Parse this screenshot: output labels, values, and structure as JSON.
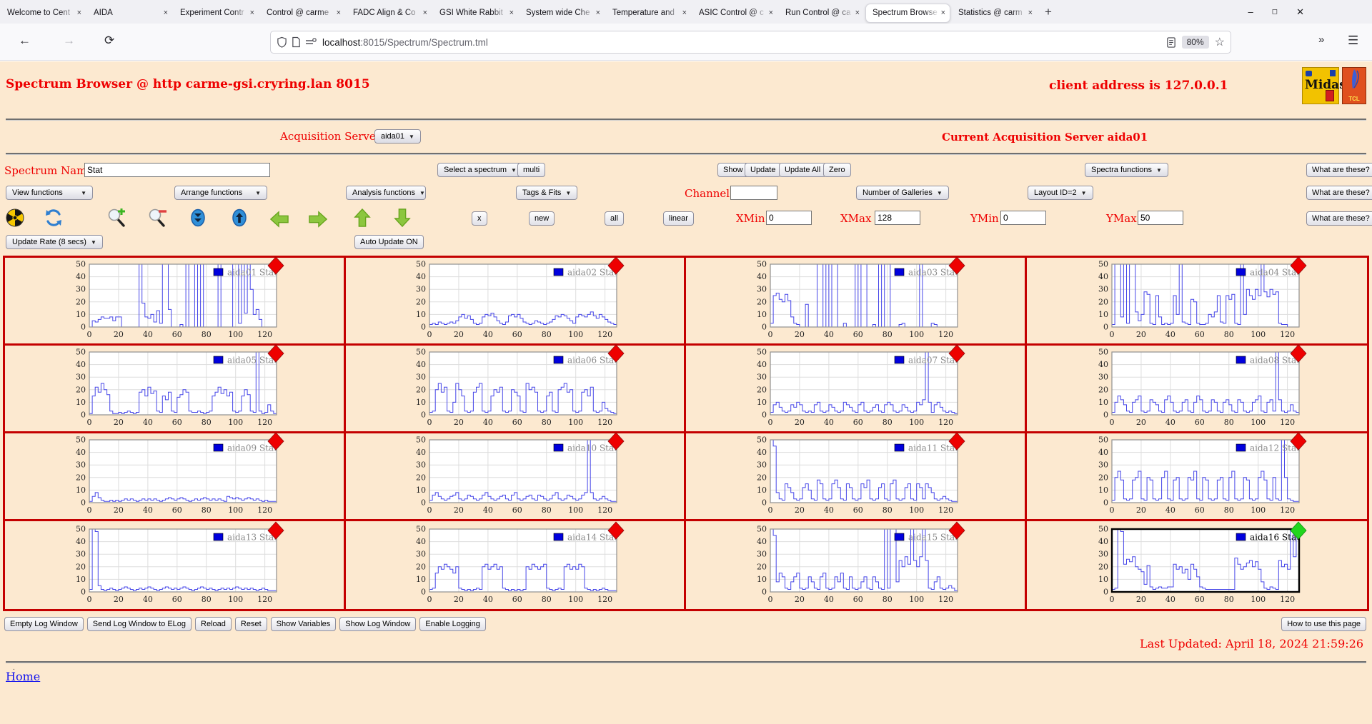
{
  "browser": {
    "tabs": [
      {
        "label": "Welcome to Cent"
      },
      {
        "label": "AIDA"
      },
      {
        "label": "Experiment Contr"
      },
      {
        "label": "Control @ carme"
      },
      {
        "label": "FADC Align & Co"
      },
      {
        "label": "GSI White Rabbit"
      },
      {
        "label": "System wide Che"
      },
      {
        "label": "Temperature and"
      },
      {
        "label": "ASIC Control @ c"
      },
      {
        "label": "Run Control @ ca"
      },
      {
        "label": "Spectrum Browse"
      },
      {
        "label": "Statistics @ carm"
      }
    ],
    "active_tab_index": 10,
    "url": {
      "host": "localhost",
      "path": ":8015/Spectrum/Spectrum.tml"
    },
    "zoom_badge": "80%"
  },
  "header": {
    "title": "Spectrum Browser @ http carme-gsi.cryring.lan 8015",
    "client_address": "client address is 127.0.0.1",
    "midas_logo_text": "Midas",
    "tcl_logo_text": "TCL"
  },
  "acquisition": {
    "label": "Acquisition Servers",
    "server_selected": "aida01",
    "current": "Current Acquisition Server aida01"
  },
  "controls": {
    "spectrum_name_label": "Spectrum Name:",
    "spectrum_name_value": "Stat",
    "select_spectrum": "Select a spectrum",
    "multi": "multi",
    "show": "Show",
    "update": "Update",
    "update_all": "Update All",
    "zero": "Zero",
    "spectra_functions": "Spectra functions",
    "what_are_these": "What are these?",
    "view_functions": "View functions",
    "arrange_functions": "Arrange functions",
    "analysis_functions": "Analysis functions",
    "tags_fits": "Tags & Fits",
    "channel_label": "Channel:",
    "channel_value": "",
    "number_of_galleries": "Number of Galleries",
    "layout_id": "Layout ID=2",
    "x_button": "x",
    "new_button": "new",
    "all_button": "all",
    "linear_button": "linear",
    "xmin_label": "XMin",
    "xmin": "0",
    "xmax_label": "XMax",
    "xmax": "128",
    "ymin_label": "YMin",
    "ymin": "0",
    "ymax_label": "YMax",
    "ymax": "50",
    "update_rate": "Update Rate (8 secs)",
    "auto_update": "Auto Update ON"
  },
  "footer": {
    "log_buttons": [
      "Empty Log Window",
      "Send Log Window to ELog",
      "Reload",
      "Reset",
      "Show Variables",
      "Show Log Window",
      "Enable Logging"
    ],
    "help_button": "How to use this page",
    "last_updated": "Last Updated: April 18, 2024 21:59:26",
    "dot": ".",
    "home_link": "Home"
  },
  "chart_data": {
    "type": "line",
    "grid": {
      "rows": 4,
      "cols": 4
    },
    "xlim": [
      0,
      128
    ],
    "ylim": [
      0,
      50
    ],
    "xticks": [
      0,
      20,
      40,
      60,
      80,
      100,
      120
    ],
    "yticks": [
      0,
      10,
      20,
      30,
      40,
      50
    ],
    "line_color": "#4646e8",
    "legend_square_color": "#0000dd",
    "marker_red": "#ee0000",
    "marker_green": "#22d51e",
    "charts": [
      {
        "name": "aida01 Stat",
        "marker": "red",
        "selected": false,
        "values": [
          0,
          5,
          4,
          6,
          8,
          7,
          7,
          8,
          5,
          8,
          8,
          0,
          0,
          0,
          0,
          0,
          0,
          50,
          19,
          8,
          7,
          10,
          4,
          13,
          3,
          50,
          50,
          14,
          0,
          0,
          0,
          2,
          0,
          50,
          0,
          0,
          50,
          0,
          50,
          0,
          0,
          0,
          0,
          0,
          50,
          0,
          0,
          0,
          0,
          50,
          50,
          3,
          50,
          11,
          50,
          30,
          10,
          14,
          6,
          0,
          0,
          0,
          0,
          0,
          0
        ]
      },
      {
        "name": "aida02 Stat",
        "marker": "red",
        "selected": false,
        "values": [
          2,
          3,
          2,
          4,
          3,
          2,
          3,
          4,
          3,
          5,
          8,
          10,
          7,
          9,
          6,
          3,
          2,
          3,
          8,
          10,
          9,
          11,
          8,
          5,
          3,
          2,
          4,
          9,
          10,
          8,
          10,
          7,
          4,
          3,
          2,
          3,
          5,
          4,
          3,
          2,
          3,
          4,
          6,
          9,
          8,
          10,
          9,
          7,
          5,
          3,
          8,
          10,
          9,
          8,
          10,
          12,
          9,
          7,
          10,
          8,
          6,
          4,
          3,
          2,
          2
        ]
      },
      {
        "name": "aida03 Stat",
        "marker": "red",
        "selected": false,
        "values": [
          3,
          25,
          27,
          22,
          20,
          26,
          21,
          8,
          3,
          2,
          0,
          0,
          18,
          0,
          0,
          0,
          50,
          50,
          0,
          50,
          0,
          50,
          50,
          0,
          0,
          3,
          0,
          0,
          0,
          50,
          0,
          50,
          50,
          0,
          0,
          2,
          0,
          50,
          0,
          50,
          50,
          0,
          0,
          0,
          2,
          3,
          0,
          0,
          0,
          0,
          0,
          50,
          0,
          0,
          0,
          3,
          2,
          0,
          0,
          0,
          0,
          0,
          0,
          0,
          0
        ]
      },
      {
        "name": "aida04 Stat",
        "marker": "red",
        "selected": false,
        "values": [
          2,
          50,
          50,
          8,
          50,
          3,
          50,
          50,
          12,
          5,
          10,
          28,
          26,
          3,
          2,
          25,
          8,
          2,
          3,
          2,
          3,
          25,
          10,
          50,
          4,
          3,
          2,
          22,
          20,
          3,
          2,
          2,
          3,
          10,
          8,
          12,
          25,
          4,
          3,
          25,
          22,
          26,
          3,
          2,
          50,
          10,
          30,
          25,
          22,
          30,
          25,
          50,
          28,
          24,
          30,
          26,
          28,
          3,
          2,
          2,
          0,
          0,
          0,
          0,
          0
        ]
      },
      {
        "name": "aida05 Stat",
        "marker": "red",
        "selected": false,
        "values": [
          1,
          15,
          22,
          18,
          25,
          20,
          16,
          3,
          1,
          1,
          2,
          1,
          2,
          3,
          2,
          1,
          2,
          18,
          20,
          15,
          22,
          17,
          19,
          3,
          2,
          15,
          12,
          18,
          3,
          2,
          14,
          16,
          20,
          18,
          3,
          2,
          2,
          3,
          2,
          1,
          2,
          3,
          15,
          18,
          22,
          17,
          20,
          15,
          18,
          3,
          2,
          3,
          15,
          20,
          16,
          3,
          2,
          50,
          3,
          1,
          2,
          8,
          3,
          1,
          0
        ]
      },
      {
        "name": "aida06 Stat",
        "marker": "red",
        "selected": false,
        "values": [
          2,
          3,
          20,
          25,
          18,
          22,
          3,
          2,
          10,
          25,
          20,
          15,
          3,
          2,
          3,
          18,
          22,
          25,
          3,
          2,
          3,
          15,
          20,
          18,
          22,
          3,
          2,
          3,
          20,
          18,
          15,
          3,
          2,
          25,
          20,
          22,
          18,
          3,
          2,
          3,
          15,
          18,
          3,
          2,
          20,
          22,
          25,
          18,
          20,
          3,
          2,
          3,
          18,
          20,
          15,
          22,
          3,
          2,
          3,
          10,
          5,
          3,
          2,
          1,
          1
        ]
      },
      {
        "name": "aida07 Stat",
        "marker": "red",
        "selected": false,
        "values": [
          2,
          8,
          10,
          6,
          3,
          2,
          3,
          8,
          6,
          10,
          8,
          3,
          2,
          3,
          2,
          8,
          10,
          3,
          2,
          3,
          8,
          6,
          3,
          2,
          3,
          10,
          8,
          6,
          3,
          2,
          8,
          10,
          3,
          2,
          3,
          6,
          8,
          3,
          2,
          8,
          10,
          8,
          3,
          2,
          3,
          8,
          6,
          3,
          2,
          3,
          10,
          8,
          12,
          50,
          10,
          2,
          8,
          10,
          6,
          3,
          2,
          3,
          2,
          1,
          1
        ]
      },
      {
        "name": "aida08 Stat",
        "marker": "red",
        "selected": false,
        "values": [
          2,
          10,
          15,
          12,
          8,
          3,
          2,
          10,
          12,
          15,
          3,
          2,
          3,
          12,
          10,
          8,
          3,
          2,
          12,
          15,
          10,
          3,
          2,
          3,
          10,
          12,
          3,
          2,
          10,
          15,
          12,
          3,
          2,
          3,
          12,
          10,
          3,
          2,
          10,
          12,
          8,
          3,
          2,
          12,
          10,
          3,
          2,
          3,
          10,
          12,
          15,
          3,
          2,
          10,
          12,
          3,
          50,
          12,
          3,
          2,
          3,
          8,
          3,
          2,
          1
        ]
      },
      {
        "name": "aida09 Stat",
        "marker": "red",
        "selected": false,
        "values": [
          1,
          5,
          8,
          4,
          2,
          1,
          1,
          2,
          1,
          2,
          1,
          2,
          3,
          2,
          3,
          2,
          1,
          2,
          3,
          2,
          3,
          2,
          3,
          2,
          1,
          2,
          3,
          4,
          3,
          2,
          3,
          4,
          3,
          2,
          1,
          2,
          3,
          2,
          3,
          4,
          3,
          2,
          3,
          2,
          3,
          2,
          1,
          5,
          4,
          3,
          4,
          3,
          2,
          3,
          4,
          3,
          2,
          3,
          2,
          1,
          2,
          1,
          1,
          1,
          1
        ]
      },
      {
        "name": "aida10 Stat",
        "marker": "red",
        "selected": false,
        "values": [
          2,
          6,
          8,
          5,
          3,
          2,
          3,
          5,
          6,
          8,
          3,
          2,
          3,
          6,
          5,
          3,
          2,
          3,
          6,
          8,
          5,
          3,
          2,
          3,
          5,
          6,
          3,
          2,
          6,
          8,
          3,
          2,
          3,
          5,
          6,
          3,
          2,
          6,
          5,
          3,
          2,
          3,
          6,
          8,
          3,
          2,
          3,
          6,
          5,
          3,
          2,
          3,
          6,
          8,
          50,
          8,
          3,
          2,
          3,
          5,
          3,
          2,
          1,
          1,
          1
        ]
      },
      {
        "name": "aida11 Stat",
        "marker": "red",
        "selected": false,
        "values": [
          50,
          45,
          8,
          3,
          2,
          15,
          12,
          8,
          3,
          2,
          3,
          12,
          15,
          10,
          3,
          2,
          18,
          15,
          3,
          2,
          3,
          15,
          18,
          12,
          3,
          2,
          15,
          12,
          3,
          2,
          3,
          15,
          12,
          18,
          3,
          2,
          3,
          12,
          15,
          3,
          2,
          15,
          18,
          3,
          2,
          3,
          12,
          15,
          3,
          2,
          15,
          12,
          3,
          15,
          12,
          8,
          3,
          2,
          3,
          5,
          3,
          2,
          1,
          1,
          1
        ]
      },
      {
        "name": "aida12 Stat",
        "marker": "red",
        "selected": false,
        "values": [
          2,
          20,
          25,
          18,
          3,
          2,
          3,
          18,
          20,
          25,
          3,
          2,
          20,
          18,
          3,
          2,
          3,
          20,
          25,
          3,
          2,
          18,
          20,
          3,
          2,
          3,
          20,
          18,
          25,
          3,
          2,
          20,
          18,
          3,
          2,
          3,
          18,
          20,
          3,
          2,
          20,
          25,
          3,
          2,
          3,
          20,
          18,
          3,
          2,
          3,
          20,
          25,
          18,
          3,
          2,
          20,
          3,
          2,
          50,
          20,
          3,
          2,
          1,
          1,
          1
        ]
      },
      {
        "name": "aida13 Stat",
        "marker": "red",
        "selected": false,
        "values": [
          2,
          50,
          48,
          5,
          2,
          1,
          2,
          3,
          2,
          1,
          2,
          3,
          4,
          3,
          2,
          1,
          2,
          3,
          2,
          3,
          4,
          3,
          2,
          1,
          2,
          3,
          4,
          3,
          2,
          3,
          2,
          3,
          4,
          3,
          2,
          1,
          2,
          3,
          4,
          3,
          2,
          3,
          2,
          1,
          2,
          3,
          2,
          3,
          2,
          3,
          4,
          3,
          2,
          3,
          2,
          3,
          2,
          1,
          2,
          3,
          2,
          1,
          1,
          1,
          1
        ]
      },
      {
        "name": "aida14 Stat",
        "marker": "red",
        "selected": false,
        "values": [
          2,
          3,
          15,
          20,
          18,
          22,
          20,
          18,
          15,
          20,
          3,
          2,
          1,
          2,
          1,
          2,
          3,
          2,
          20,
          22,
          18,
          20,
          22,
          18,
          20,
          3,
          2,
          1,
          2,
          1,
          2,
          1,
          2,
          20,
          18,
          22,
          20,
          18,
          20,
          22,
          3,
          2,
          1,
          2,
          3,
          2,
          20,
          22,
          18,
          20,
          18,
          22,
          20,
          3,
          2,
          1,
          2,
          1,
          2,
          3,
          2,
          1,
          1,
          1,
          1
        ]
      },
      {
        "name": "aida15 Stat",
        "marker": "red",
        "selected": false,
        "values": [
          50,
          45,
          8,
          15,
          12,
          3,
          2,
          8,
          12,
          15,
          3,
          2,
          3,
          12,
          8,
          3,
          2,
          12,
          15,
          3,
          2,
          3,
          12,
          8,
          15,
          3,
          2,
          12,
          3,
          2,
          3,
          8,
          12,
          3,
          2,
          12,
          8,
          3,
          2,
          50,
          3,
          50,
          50,
          8,
          25,
          20,
          28,
          22,
          50,
          25,
          20,
          28,
          50,
          25,
          3,
          2,
          8,
          12,
          3,
          2,
          3,
          5,
          3,
          1,
          1
        ]
      },
      {
        "name": "aida16 Stat",
        "marker": "green",
        "selected": true,
        "values": [
          2,
          3,
          50,
          48,
          22,
          26,
          24,
          28,
          20,
          18,
          16,
          6,
          21,
          4,
          2,
          3,
          4,
          3,
          3,
          4,
          4,
          22,
          18,
          20,
          15,
          18,
          10,
          22,
          18,
          12,
          4,
          3,
          2,
          2,
          2,
          2,
          2,
          2,
          2,
          2,
          2,
          2,
          27,
          22,
          18,
          20,
          23,
          25,
          20,
          24,
          18,
          8,
          3,
          2,
          4,
          3,
          2,
          25,
          20,
          22,
          18,
          50,
          28,
          50,
          2
        ]
      }
    ]
  }
}
